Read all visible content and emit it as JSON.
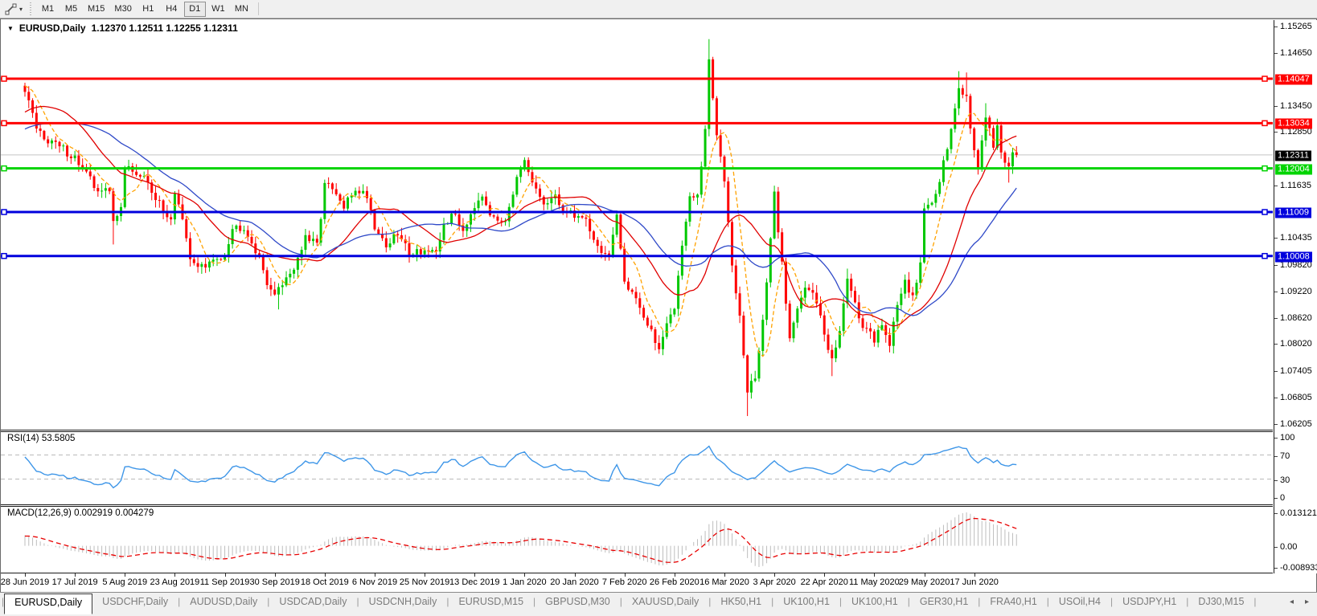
{
  "toolbar": {
    "tool_icon": "chart-line-tool-icon",
    "dropdown_caret": "▾",
    "timeframes": [
      "M1",
      "M5",
      "M15",
      "M30",
      "H1",
      "H4",
      "D1",
      "W1",
      "MN"
    ],
    "active_timeframe": "D1"
  },
  "chart": {
    "collapse_icon": "▼",
    "title_symbol": "EURUSD,Daily",
    "title_ohlc": "1.12370 1.12511 1.12255 1.12311",
    "open": "1.12370",
    "high": "1.12511",
    "low": "1.12255",
    "close": "1.12311"
  },
  "price_axis": {
    "plain_ticks": [
      "1.15265",
      "1.14650",
      "1.13450",
      "1.12850",
      "1.11635",
      "1.10435",
      "1.09820",
      "1.09220",
      "1.08620",
      "1.08020",
      "1.07405",
      "1.06805",
      "1.06205"
    ],
    "current_price_label": {
      "text": "1.12311",
      "bg": "#000000",
      "fg": "#ffffff"
    }
  },
  "hlines": [
    {
      "label": "1.14047",
      "price": 1.14047,
      "color": "#ff0000",
      "width": 3
    },
    {
      "label": "1.13034",
      "price": 1.13034,
      "color": "#ff0000",
      "width": 3
    },
    {
      "label": "1.12004",
      "price": 1.12004,
      "color": "#00d400",
      "width": 3
    },
    {
      "label": "1.11009",
      "price": 1.11009,
      "color": "#0000dd",
      "width": 3
    },
    {
      "label": "1.10008",
      "price": 1.10008,
      "color": "#0000dd",
      "width": 3
    }
  ],
  "rsi_panel": {
    "label": "RSI(14) 53.5805",
    "period": 14,
    "value": "53.5805",
    "axis_labels": [
      "100",
      "70",
      "30",
      "0"
    ],
    "levels": [
      70,
      30
    ],
    "line_color": "#3e96e8",
    "level_color": "#b9b9b9"
  },
  "macd_panel": {
    "label": "MACD(12,26,9) 0.002919 0.004279",
    "main_value": "0.002919",
    "signal_value": "0.004279",
    "axis_top": "0.013121",
    "axis_zero": "0.00",
    "axis_bottom": "-0.008933",
    "bar_color": "#bdbdbd",
    "signal_color": "#e80000"
  },
  "time_axis": {
    "labels": [
      "28 Jun 2019",
      "17 Jul 2019",
      "5 Aug 2019",
      "23 Aug 2019",
      "11 Sep 2019",
      "30 Sep 2019",
      "18 Oct 2019",
      "6 Nov 2019",
      "25 Nov 2019",
      "13 Dec 2019",
      "1 Jan 2020",
      "20 Jan 2020",
      "7 Feb 2020",
      "26 Feb 2020",
      "16 Mar 2020",
      "3 Apr 2020",
      "22 Apr 2020",
      "11 May 2020",
      "29 May 2020",
      "17 Jun 2020"
    ],
    "days_per_label": 13
  },
  "tabs": {
    "items": [
      "EURUSD,Daily",
      "USDCHF,Daily",
      "AUDUSD,Daily",
      "USDCAD,Daily",
      "USDCNH,Daily",
      "EURUSD,M15",
      "GBPUSD,M30",
      "XAUUSD,Daily",
      "HK50,H1",
      "UK100,H1",
      "UK100,H1",
      "GER30,H1",
      "FRA40,H1",
      "USOil,H4",
      "USDJPY,H1",
      "DJ30,M15"
    ],
    "active_index": 0,
    "left_arrow": "◂",
    "right_arrow": "▸"
  },
  "chart_data": {
    "type": "candlestick",
    "symbol": "EURUSD",
    "timeframe": "Daily",
    "price_top": 1.15265,
    "price_bottom": 1.06205,
    "days": 259,
    "up_color": "#00c800",
    "down_color": "#ff0000",
    "current_price": 1.12311,
    "current_line_color": "#c4c4c4",
    "ma_lines": [
      {
        "name": "fast",
        "period": 7,
        "color": "#ffa200",
        "dash": "5 3"
      },
      {
        "name": "mid",
        "period": 20,
        "color": "#e00000",
        "dash": ""
      },
      {
        "name": "slow",
        "period": 34,
        "color": "#2f49c8",
        "dash": ""
      }
    ],
    "close_keypoints": [
      [
        -35,
        1.1215
      ],
      [
        -25,
        1.1235
      ],
      [
        -15,
        1.126
      ],
      [
        -8,
        1.136
      ],
      [
        -3,
        1.14
      ],
      [
        -1,
        1.138
      ],
      [
        0,
        1.1373
      ],
      [
        3,
        1.1288
      ],
      [
        8,
        1.1255
      ],
      [
        13,
        1.1226
      ],
      [
        18,
        1.116
      ],
      [
        22,
        1.1145
      ],
      [
        23,
        1.1078
      ],
      [
        25,
        1.112
      ],
      [
        26,
        1.12
      ],
      [
        28,
        1.1195
      ],
      [
        32,
        1.117
      ],
      [
        36,
        1.11
      ],
      [
        38,
        1.109
      ],
      [
        39,
        1.1145
      ],
      [
        41,
        1.108
      ],
      [
        43,
        1.099
      ],
      [
        47,
        1.0975
      ],
      [
        50,
        1.0995
      ],
      [
        52,
        1.101
      ],
      [
        54,
        1.1065
      ],
      [
        57,
        1.107
      ],
      [
        60,
        1.1015
      ],
      [
        63,
        1.0945
      ],
      [
        65,
        1.0905
      ],
      [
        66,
        1.093
      ],
      [
        70,
        1.0975
      ],
      [
        73,
        1.104
      ],
      [
        76,
        1.1025
      ],
      [
        78,
        1.1165
      ],
      [
        80,
        1.115
      ],
      [
        83,
        1.111
      ],
      [
        86,
        1.1155
      ],
      [
        89,
        1.114
      ],
      [
        91,
        1.107
      ],
      [
        94,
        1.1025
      ],
      [
        97,
        1.105
      ],
      [
        100,
        1.101
      ],
      [
        104,
        1.1015
      ],
      [
        107,
        1.1
      ],
      [
        109,
        1.1075
      ],
      [
        112,
        1.1095
      ],
      [
        114,
        1.106
      ],
      [
        117,
        1.112
      ],
      [
        119,
        1.1145
      ],
      [
        122,
        1.108
      ],
      [
        125,
        1.109
      ],
      [
        128,
        1.1175
      ],
      [
        130,
        1.121
      ],
      [
        132,
        1.1165
      ],
      [
        135,
        1.112
      ],
      [
        138,
        1.113
      ],
      [
        141,
        1.11
      ],
      [
        143,
        1.1095
      ],
      [
        146,
        1.1085
      ],
      [
        149,
        1.102
      ],
      [
        152,
        1.1
      ],
      [
        154,
        1.1085
      ],
      [
        156,
        1.0945
      ],
      [
        159,
        1.091
      ],
      [
        162,
        1.084
      ],
      [
        165,
        1.079
      ],
      [
        167,
        1.0855
      ],
      [
        169,
        1.088
      ],
      [
        171,
        1.103
      ],
      [
        173,
        1.113
      ],
      [
        175,
        1.1135
      ],
      [
        177,
        1.128
      ],
      [
        178,
        1.145
      ],
      [
        180,
        1.127
      ],
      [
        182,
        1.118
      ],
      [
        184,
        1.099
      ],
      [
        186,
        1.086
      ],
      [
        188,
        1.069
      ],
      [
        190,
        1.0725
      ],
      [
        192,
        1.0855
      ],
      [
        194,
        1.103
      ],
      [
        195,
        1.114
      ],
      [
        197,
        1.0985
      ],
      [
        199,
        1.081
      ],
      [
        201,
        1.089
      ],
      [
        203,
        1.0935
      ],
      [
        205,
        1.091
      ],
      [
        207,
        1.0865
      ],
      [
        208,
        1.082
      ],
      [
        210,
        1.0775
      ],
      [
        212,
        1.0825
      ],
      [
        214,
        1.0955
      ],
      [
        216,
        1.09
      ],
      [
        218,
        1.0835
      ],
      [
        221,
        1.081
      ],
      [
        223,
        1.085
      ],
      [
        225,
        1.08
      ],
      [
        227,
        1.0885
      ],
      [
        229,
        1.095
      ],
      [
        231,
        1.0905
      ],
      [
        233,
        1.0985
      ],
      [
        234,
        1.11
      ],
      [
        236,
        1.1125
      ],
      [
        238,
        1.1175
      ],
      [
        240,
        1.1255
      ],
      [
        242,
        1.1335
      ],
      [
        243,
        1.139
      ],
      [
        245,
        1.1355
      ],
      [
        246,
        1.1295
      ],
      [
        247,
        1.124
      ],
      [
        248,
        1.1205
      ],
      [
        250,
        1.131
      ],
      [
        252,
        1.1255
      ],
      [
        253,
        1.129
      ],
      [
        254,
        1.123
      ],
      [
        256,
        1.1215
      ],
      [
        257,
        1.1237
      ],
      [
        258,
        1.12311
      ]
    ],
    "wick_high_overrides": {
      "178": 1.1495,
      "214": 1.0972,
      "243": 1.1422,
      "245": 1.1419,
      "250": 1.1349
    },
    "wick_low_overrides": {
      "23": 1.1027,
      "66": 1.0879,
      "165": 1.0778,
      "188": 1.0636,
      "210": 1.0727,
      "256": 1.1168
    },
    "last_candle": {
      "open": 1.1237,
      "high": 1.12511,
      "low": 1.12255,
      "close": 1.12311
    }
  }
}
